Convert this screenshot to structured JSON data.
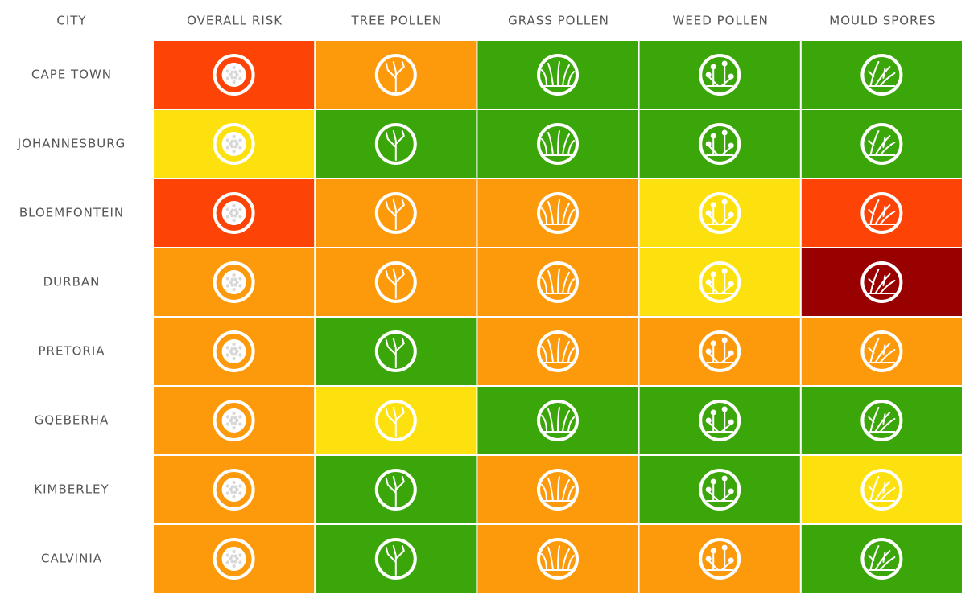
{
  "table": {
    "headers": [
      "CITY",
      "OVERALL RISK",
      "TREE POLLEN",
      "GRASS POLLEN",
      "WEED POLLEN",
      "MOULD SPORES"
    ],
    "rows": [
      {
        "city": "CAPE TOWN",
        "colors": [
          "#fd4406",
          "#fd9a0c",
          "#3ba60a",
          "#3ba60a",
          "#3ba60a"
        ]
      },
      {
        "city": "JOHANNESBURG",
        "colors": [
          "#fce10f",
          "#3ba60a",
          "#3ba60a",
          "#3ba60a",
          "#3ba60a"
        ]
      },
      {
        "city": "BLOEMFONTEIN",
        "colors": [
          "#fd4406",
          "#fd9a0c",
          "#fd9a0c",
          "#fce10f",
          "#fd4406"
        ]
      },
      {
        "city": "DURBAN",
        "colors": [
          "#fd9a0c",
          "#fd9a0c",
          "#fd9a0c",
          "#fce10f",
          "#990000"
        ]
      },
      {
        "city": "PRETORIA",
        "colors": [
          "#fd9a0c",
          "#3ba60a",
          "#fd9a0c",
          "#fd9a0c",
          "#fd9a0c"
        ]
      },
      {
        "city": "GQEBERHA",
        "colors": [
          "#fd9a0c",
          "#fce10f",
          "#3ba60a",
          "#3ba60a",
          "#3ba60a"
        ]
      },
      {
        "city": "KIMBERLEY",
        "colors": [
          "#fd9a0c",
          "#3ba60a",
          "#fd9a0c",
          "#3ba60a",
          "#fce10f"
        ]
      },
      {
        "city": "CALVINIA",
        "colors": [
          "#fd9a0c",
          "#3ba60a",
          "#fd9a0c",
          "#fd9a0c",
          "#3ba60a"
        ]
      }
    ]
  }
}
